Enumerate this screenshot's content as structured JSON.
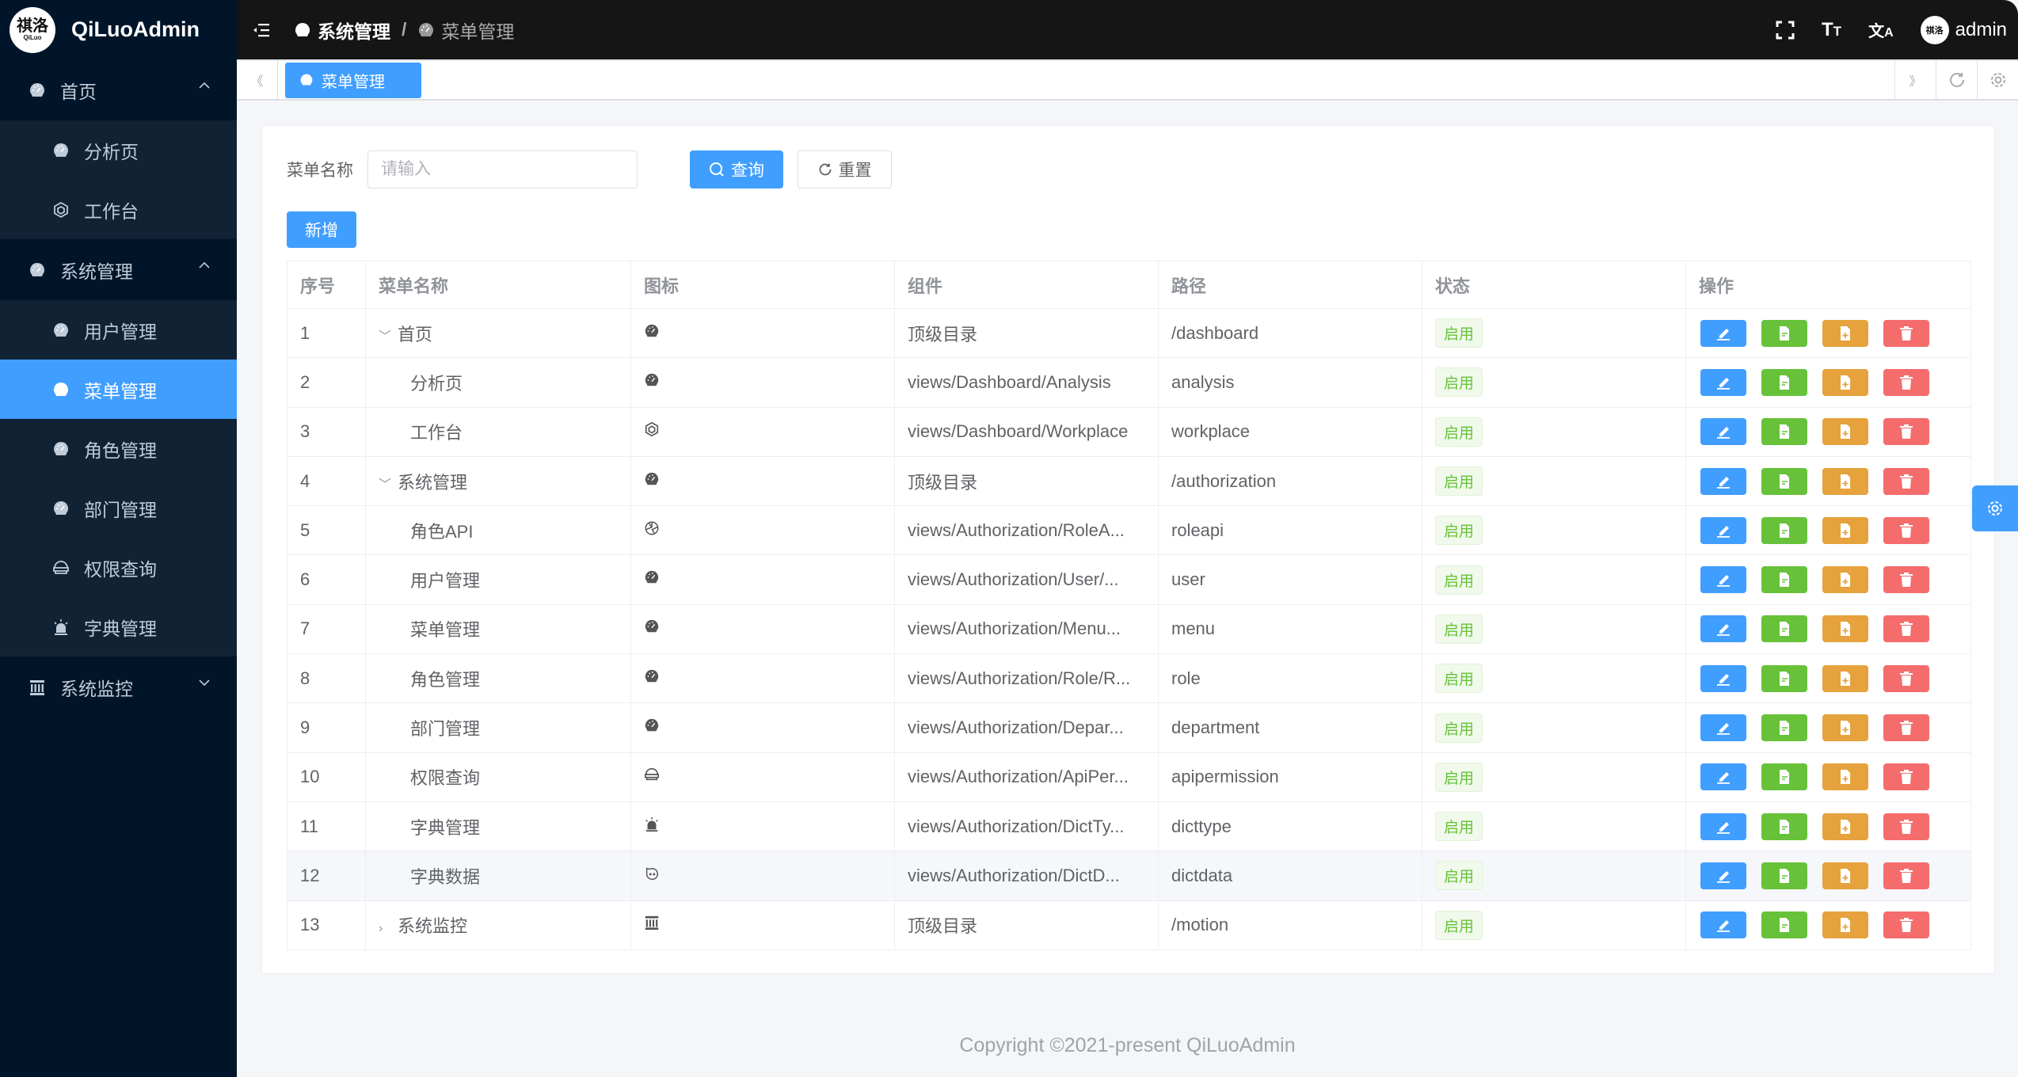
{
  "app": {
    "title": "QiLuoAdmin",
    "logo_text": "祺洛",
    "logo_sub": "QiLuo"
  },
  "sidebar": {
    "groups": [
      {
        "label": "首页",
        "icon": "dashboard-icon",
        "expanded": true,
        "items": [
          {
            "label": "分析页",
            "icon": "dashboard-icon"
          },
          {
            "label": "工作台",
            "icon": "workplace-icon"
          }
        ]
      },
      {
        "label": "系统管理",
        "icon": "dashboard-icon",
        "expanded": true,
        "items": [
          {
            "label": "用户管理",
            "icon": "dashboard-icon"
          },
          {
            "label": "菜单管理",
            "icon": "dashboard-icon",
            "active": true
          },
          {
            "label": "角色管理",
            "icon": "dashboard-icon"
          },
          {
            "label": "部门管理",
            "icon": "dashboard-icon"
          },
          {
            "label": "权限查询",
            "icon": "permission-icon"
          },
          {
            "label": "字典管理",
            "icon": "alarm-icon"
          }
        ]
      },
      {
        "label": "系统监控",
        "icon": "monitor-icon",
        "expanded": false,
        "items": []
      }
    ]
  },
  "header": {
    "breadcrumb": [
      "系统管理",
      "菜单管理"
    ],
    "separator": "/",
    "user": "admin"
  },
  "tabs": [
    {
      "label": "菜单管理",
      "active": true
    }
  ],
  "search": {
    "label": "菜单名称",
    "placeholder": "请输入",
    "value": "",
    "query_label": "查询",
    "reset_label": "重置",
    "new_label": "新增"
  },
  "table": {
    "columns": [
      "序号",
      "菜单名称",
      "图标",
      "组件",
      "路径",
      "状态",
      "操作"
    ],
    "rows": [
      {
        "no": "1",
        "name": "首页",
        "level": 0,
        "tree": "expanded",
        "icon": "dashboard-icon",
        "component": "顶级目录",
        "path": "/dashboard",
        "status": "启用"
      },
      {
        "no": "2",
        "name": "分析页",
        "level": 1,
        "icon": "dashboard-icon",
        "component": "views/Dashboard/Analysis",
        "path": "analysis",
        "status": "启用"
      },
      {
        "no": "3",
        "name": "工作台",
        "level": 1,
        "icon": "workplace-icon",
        "component": "views/Dashboard/Workplace",
        "path": "workplace",
        "status": "启用"
      },
      {
        "no": "4",
        "name": "系统管理",
        "level": 0,
        "tree": "expanded",
        "icon": "dashboard-icon",
        "component": "顶级目录",
        "path": "/authorization",
        "status": "启用"
      },
      {
        "no": "5",
        "name": "角色API",
        "level": 1,
        "icon": "api-icon",
        "component": "views/Authorization/RoleA...",
        "path": "roleapi",
        "status": "启用"
      },
      {
        "no": "6",
        "name": "用户管理",
        "level": 1,
        "icon": "dashboard-icon",
        "component": "views/Authorization/User/...",
        "path": "user",
        "status": "启用"
      },
      {
        "no": "7",
        "name": "菜单管理",
        "level": 1,
        "icon": "dashboard-icon",
        "component": "views/Authorization/Menu...",
        "path": "menu",
        "status": "启用"
      },
      {
        "no": "8",
        "name": "角色管理",
        "level": 1,
        "icon": "dashboard-icon",
        "component": "views/Authorization/Role/R...",
        "path": "role",
        "status": "启用"
      },
      {
        "no": "9",
        "name": "部门管理",
        "level": 1,
        "icon": "dashboard-icon",
        "component": "views/Authorization/Depar...",
        "path": "department",
        "status": "启用"
      },
      {
        "no": "10",
        "name": "权限查询",
        "level": 1,
        "icon": "permission-icon",
        "component": "views/Authorization/ApiPer...",
        "path": "apipermission",
        "status": "启用"
      },
      {
        "no": "11",
        "name": "字典管理",
        "level": 1,
        "icon": "alarm-icon",
        "component": "views/Authorization/DictTy...",
        "path": "dicttype",
        "status": "启用"
      },
      {
        "no": "12",
        "name": "字典数据",
        "level": 1,
        "icon": "dictdata-icon",
        "component": "views/Authorization/DictD...",
        "path": "dictdata",
        "status": "启用",
        "hover": true
      },
      {
        "no": "13",
        "name": "系统监控",
        "level": 0,
        "tree": "collapsed",
        "icon": "monitor-icon",
        "component": "顶级目录",
        "path": "/motion",
        "status": "启用"
      }
    ],
    "actions": [
      {
        "name": "edit",
        "icon": "edit-icon",
        "color": "#409eff"
      },
      {
        "name": "detail",
        "icon": "document-icon",
        "color": "#67c23a"
      },
      {
        "name": "add-child",
        "icon": "document-add-icon",
        "color": "#e6a23c"
      },
      {
        "name": "delete",
        "icon": "delete-icon",
        "color": "#f56c6c"
      }
    ]
  },
  "colors": {
    "primary": "#409eff",
    "sidebar": "#001529",
    "submenu": "#112235",
    "header": "#151515",
    "success": "#67c23a"
  },
  "footer": {
    "text": "Copyright ©2021-present QiLuoAdmin"
  }
}
